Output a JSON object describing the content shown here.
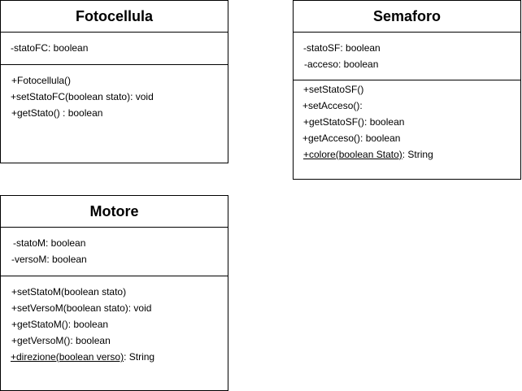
{
  "diagram": {
    "classes": {
      "fotocellula": {
        "name": "Fotocellula",
        "attributes": [
          "-statoFC: boolean"
        ],
        "methods": [
          "+Fotocellula()",
          "+setStatoFC(boolean stato): void",
          "+getStato() : boolean"
        ]
      },
      "semaforo": {
        "name": "Semaforo",
        "attributes": [
          "-statoSF: boolean",
          "-acceso: boolean"
        ],
        "methods": [
          "+setStatoSF()",
          "+setAcceso():",
          "+getStatoSF(): boolean",
          "+getAcceso(): boolean"
        ],
        "static_method": {
          "underlined": "+colore(boolean Stato)",
          "suffix": ": String"
        }
      },
      "motore": {
        "name": "Motore",
        "attributes": [
          "-statoM: boolean",
          "-versoM: boolean"
        ],
        "methods": [
          "+setStatoM(boolean stato)",
          "+setVersoM(boolean stato): void",
          "+getStatoM(): boolean",
          "+getVersoM(): boolean"
        ],
        "static_method": {
          "underlined": "+direzione(boolean verso)",
          "suffix": ": String"
        }
      }
    }
  }
}
